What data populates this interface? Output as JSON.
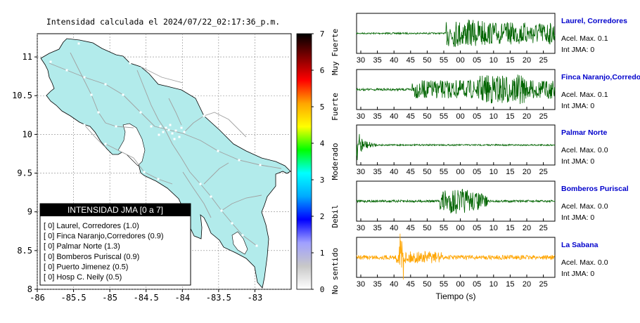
{
  "map_panel": {
    "title": "Intensidad calculada el 2024/07/22_02:17:36_p.m.",
    "x_ticks": [
      "-86",
      "-85.5",
      "-85",
      "-84.5",
      "-84",
      "-83.5",
      "-83"
    ],
    "y_ticks": [
      "11",
      "10.5",
      "10",
      "9.5",
      "9",
      "8.5",
      "8"
    ],
    "colors": {
      "land": "#b2ebeb",
      "sea": "#ffffff",
      "roads": "#a0a0a0"
    }
  },
  "colorbar": {
    "ticks": [
      "0",
      "1",
      "2",
      "3",
      "4",
      "5",
      "6",
      "7"
    ],
    "category_labels": [
      "No sentido",
      "Debil",
      "Moderado",
      "Fuerte",
      "Muy Fuerte"
    ],
    "colors": [
      "#ffffff",
      "#c8c8c8",
      "#a0a0ff",
      "#0000ff",
      "#00aaff",
      "#00ffff",
      "#00ff00",
      "#ffff00",
      "#ffa500",
      "#ff0000",
      "#800000",
      "#000000"
    ]
  },
  "legend": {
    "title": "INTENSIDAD JMA [0 a 7]",
    "entries": [
      {
        "text": "[ 0]  Laurel, Corredores (1.0)",
        "intensity": 1.0
      },
      {
        "text": "[ 0]  Finca Naranjo,Corredores (0.9)",
        "intensity": 0.9
      },
      {
        "text": "[ 0]  Palmar Norte (1.3)",
        "intensity": 1.3
      },
      {
        "text": "[ 0]  Bomberos Puriscal (0.9)",
        "intensity": 0.9
      },
      {
        "text": "[ 0]  Puerto Jimenez (0.5)",
        "intensity": 0.5
      },
      {
        "text": "[ 0]  Hosp C. Neily (0.5)",
        "intensity": 0.5
      }
    ]
  },
  "waveforms": {
    "x_ticks": [
      "30",
      "35",
      "40",
      "45",
      "50",
      "55",
      "00",
      "05",
      "10",
      "15",
      "20",
      "25"
    ],
    "xlabel": "Tiempo (s)",
    "stations": [
      {
        "name": "Laurel, Corredores",
        "acel": "Acel. Max. 0.1",
        "jma": "Int JMA: 0",
        "color": "#006400"
      },
      {
        "name": "Finca Naranjo,Corredores",
        "acel": "Acel. Max. 0.1",
        "jma": "Int JMA: 0",
        "color": "#006400"
      },
      {
        "name": "Palmar Norte",
        "acel": "Acel. Max. 0.0",
        "jma": "Int JMA: 0",
        "color": "#006400"
      },
      {
        "name": "Bomberos Puriscal",
        "acel": "Acel. Max. 0.0",
        "jma": "Int JMA: 0",
        "color": "#006400"
      },
      {
        "name": "La Sabana",
        "acel": "Acel. Max. 0.0",
        "jma": "Int JMA: 0",
        "color": "#ffa500"
      }
    ]
  },
  "chart_data": [
    {
      "type": "map",
      "title": "Intensidad calculada el 2024/07/22_02:17:36_p.m.",
      "xlim": [
        -86,
        -82.5
      ],
      "ylim": [
        8,
        11.3
      ],
      "legend_title": "INTENSIDAD JMA [0 a 7]",
      "stations": [
        {
          "name": "Laurel, Corredores",
          "intensity": 1.0
        },
        {
          "name": "Finca Naranjo,Corredores",
          "intensity": 0.9
        },
        {
          "name": "Palmar Norte",
          "intensity": 1.3
        },
        {
          "name": "Bomberos Puriscal",
          "intensity": 0.9
        },
        {
          "name": "Puerto Jimenez",
          "intensity": 0.5
        },
        {
          "name": "Hosp C. Neily",
          "intensity": 0.5
        }
      ],
      "colorbar_range": [
        0,
        7
      ]
    },
    {
      "type": "line",
      "xlabel": "Tiempo (s)",
      "series": [
        {
          "name": "Laurel, Corredores",
          "acel_max": 0.1,
          "int_jma": 0
        },
        {
          "name": "Finca Naranjo,Corredores",
          "acel_max": 0.1,
          "int_jma": 0
        },
        {
          "name": "Palmar Norte",
          "acel_max": 0.0,
          "int_jma": 0
        },
        {
          "name": "Bomberos Puriscal",
          "acel_max": 0.0,
          "int_jma": 0
        },
        {
          "name": "La Sabana",
          "acel_max": 0.0,
          "int_jma": 0
        }
      ]
    }
  ]
}
